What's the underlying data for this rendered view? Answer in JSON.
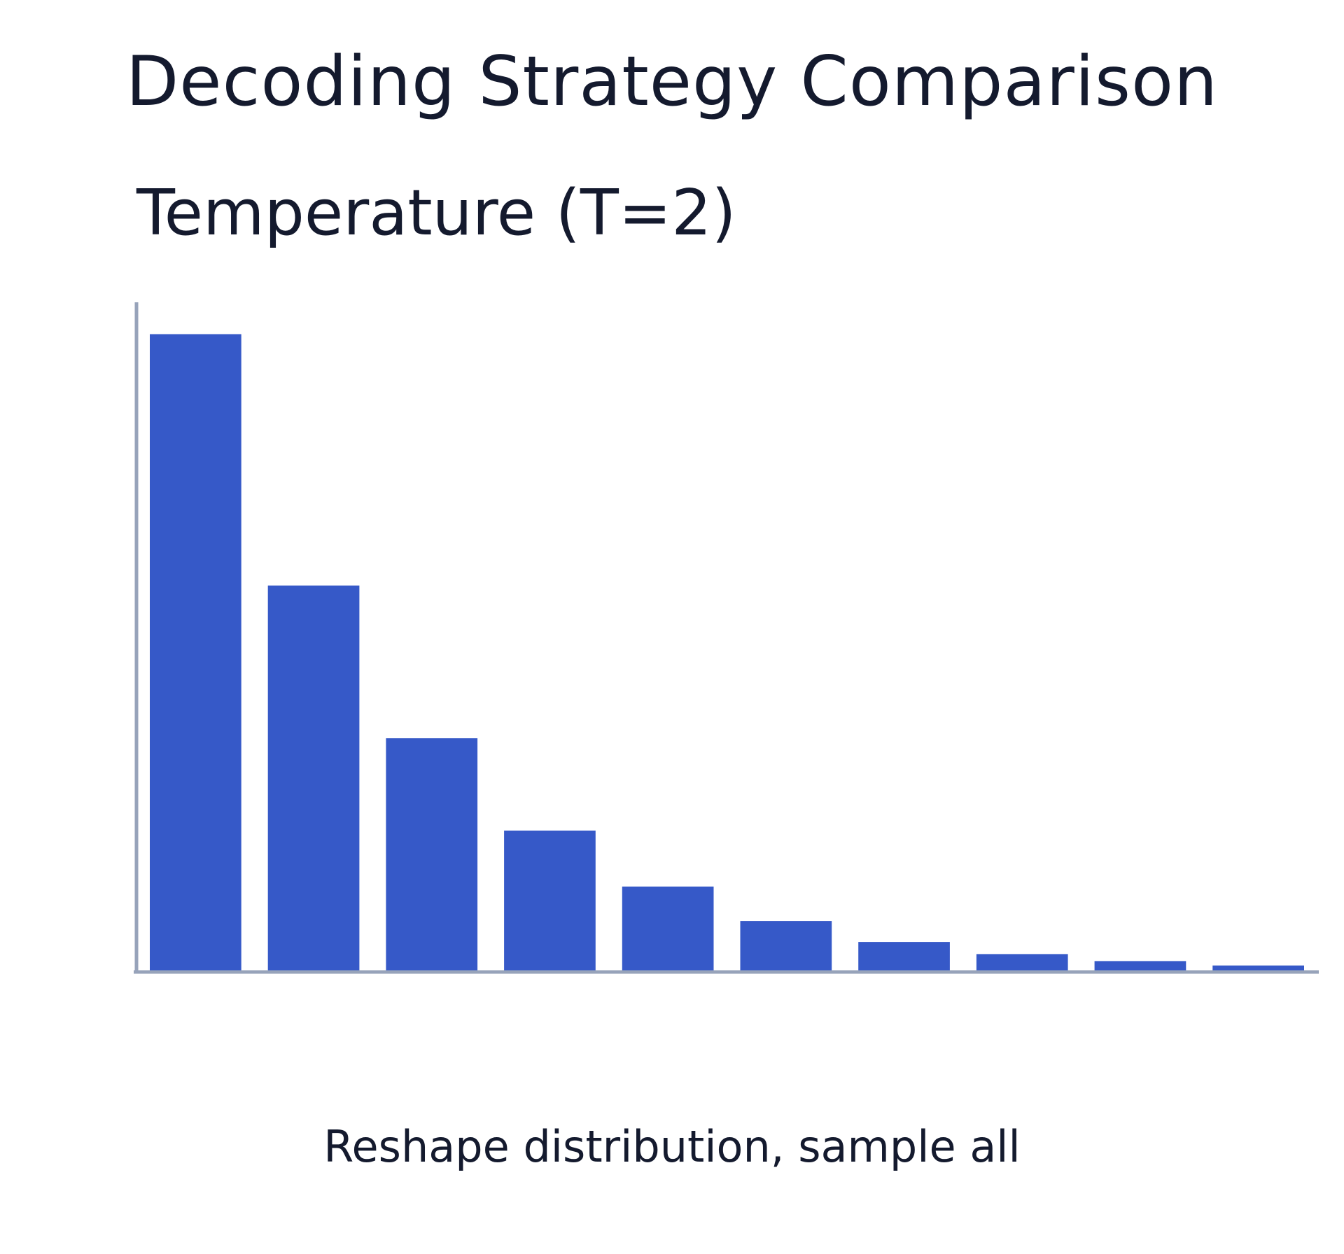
{
  "header": {
    "title": "Decoding Strategy Comparison"
  },
  "chart_data": {
    "type": "bar",
    "title": "Temperature (T=2)",
    "caption": "Reshape distribution, sample all",
    "xlabel": "",
    "ylabel": "",
    "values": [
      100,
      60.5,
      36.5,
      22,
      13.2,
      7.8,
      4.5,
      2.6,
      1.5,
      0.8
    ],
    "ylim": [
      0,
      105
    ],
    "grid": false,
    "legend": "none",
    "colors": {
      "bar": "#3659c8",
      "axis": "#97a3ba",
      "text": "#141a2e"
    }
  }
}
